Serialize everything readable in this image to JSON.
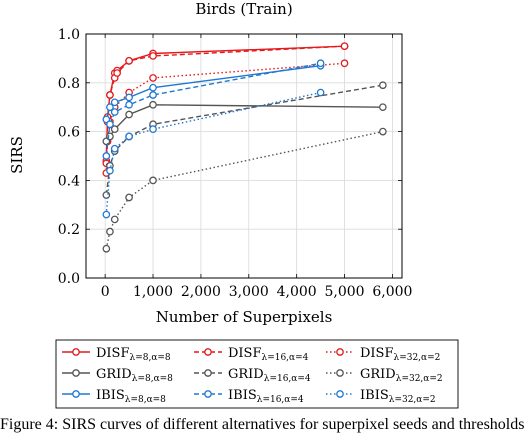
{
  "chart_data": {
    "type": "line",
    "title": "Birds (Train)",
    "xlabel": "Number of Superpixels",
    "ylabel": "SIRS",
    "xlim": [
      -400,
      6200
    ],
    "ylim": [
      0,
      1.0
    ],
    "xticks": [
      0,
      1000,
      2000,
      3000,
      4000,
      5000,
      6000
    ],
    "xtick_labels": [
      "0",
      "1,000",
      "2,000",
      "3,000",
      "4,000",
      "5,000",
      "6,000"
    ],
    "yticks": [
      0,
      0.2,
      0.4,
      0.6,
      0.8,
      1.0
    ],
    "ytick_labels": [
      "0.0",
      "0.2",
      "0.4",
      "0.6",
      "0.8",
      "1.0"
    ],
    "grid": true,
    "legend_position": "below",
    "series": [
      {
        "name": "DISF",
        "sub": "λ=8,α=8",
        "color": "#e41a1c",
        "dash": "solid",
        "points": [
          [
            25,
            0.48
          ],
          [
            50,
            0.66
          ],
          [
            100,
            0.75
          ],
          [
            200,
            0.84
          ],
          [
            250,
            0.85
          ],
          [
            500,
            0.89
          ],
          [
            1000,
            0.92
          ],
          [
            5000,
            0.95
          ]
        ]
      },
      {
        "name": "DISF",
        "sub": "λ=16,α=4",
        "color": "#e41a1c",
        "dash": "dashed",
        "points": [
          [
            25,
            0.47
          ],
          [
            50,
            0.64
          ],
          [
            100,
            0.75
          ],
          [
            200,
            0.82
          ],
          [
            250,
            0.84
          ],
          [
            500,
            0.89
          ],
          [
            1000,
            0.91
          ],
          [
            5000,
            0.95
          ]
        ]
      },
      {
        "name": "DISF",
        "sub": "λ=32,α=2",
        "color": "#e41a1c",
        "dash": "dotted",
        "points": [
          [
            25,
            0.43
          ],
          [
            50,
            0.56
          ],
          [
            100,
            0.64
          ],
          [
            200,
            0.7
          ],
          [
            500,
            0.76
          ],
          [
            1000,
            0.82
          ],
          [
            5000,
            0.88
          ]
        ]
      },
      {
        "name": "GRID",
        "sub": "λ=8,α=8",
        "color": "#555555",
        "dash": "solid",
        "points": [
          [
            25,
            0.56
          ],
          [
            100,
            0.58
          ],
          [
            200,
            0.61
          ],
          [
            500,
            0.67
          ],
          [
            1000,
            0.71
          ],
          [
            5800,
            0.7
          ]
        ]
      },
      {
        "name": "GRID",
        "sub": "λ=16,α=4",
        "color": "#555555",
        "dash": "dashed",
        "points": [
          [
            25,
            0.34
          ],
          [
            100,
            0.46
          ],
          [
            200,
            0.52
          ],
          [
            500,
            0.58
          ],
          [
            1000,
            0.63
          ],
          [
            5800,
            0.79
          ]
        ]
      },
      {
        "name": "GRID",
        "sub": "λ=32,α=2",
        "color": "#555555",
        "dash": "dotted",
        "points": [
          [
            25,
            0.12
          ],
          [
            100,
            0.19
          ],
          [
            200,
            0.24
          ],
          [
            500,
            0.33
          ],
          [
            1000,
            0.4
          ],
          [
            5800,
            0.6
          ]
        ]
      },
      {
        "name": "IBIS",
        "sub": "λ=8,α=8",
        "color": "#1f78d1",
        "dash": "solid",
        "points": [
          [
            25,
            0.65
          ],
          [
            100,
            0.7
          ],
          [
            200,
            0.72
          ],
          [
            500,
            0.74
          ],
          [
            1000,
            0.78
          ],
          [
            4500,
            0.87
          ]
        ]
      },
      {
        "name": "IBIS",
        "sub": "λ=16,α=4",
        "color": "#1f78d1",
        "dash": "dashed",
        "points": [
          [
            25,
            0.5
          ],
          [
            100,
            0.63
          ],
          [
            200,
            0.68
          ],
          [
            500,
            0.71
          ],
          [
            1000,
            0.75
          ],
          [
            4500,
            0.88
          ]
        ]
      },
      {
        "name": "IBIS",
        "sub": "λ=32,α=2",
        "color": "#1f78d1",
        "dash": "dotted",
        "points": [
          [
            25,
            0.26
          ],
          [
            100,
            0.44
          ],
          [
            200,
            0.53
          ],
          [
            500,
            0.58
          ],
          [
            1000,
            0.61
          ],
          [
            4500,
            0.76
          ]
        ]
      }
    ]
  },
  "caption": "Figure 4: SIRS curves of different alternatives for superpixel seeds and thresholds"
}
